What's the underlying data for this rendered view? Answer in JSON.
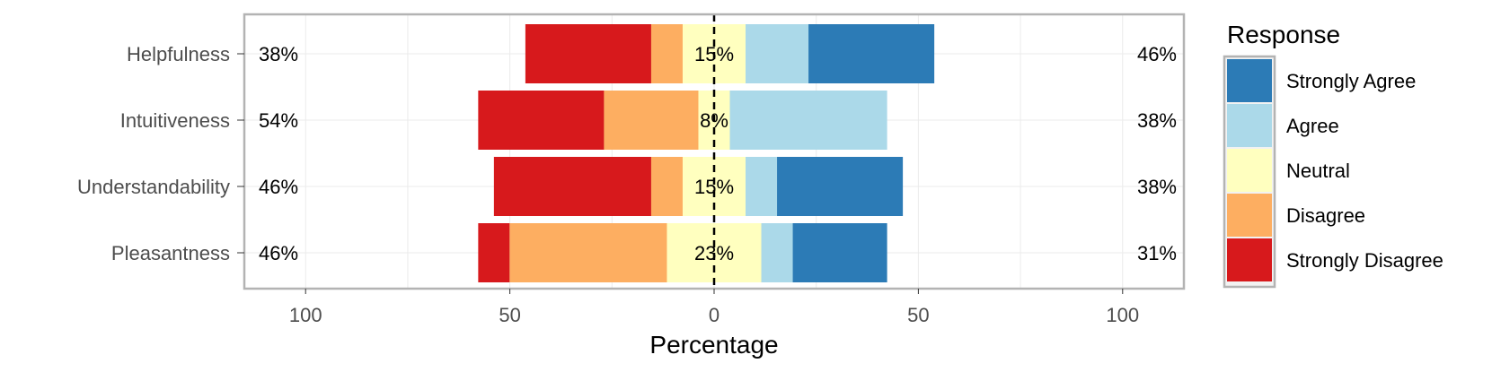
{
  "chart_data": {
    "type": "bar",
    "orientation": "horizontal-diverging",
    "xlabel": "Percentage",
    "xlim": [
      -115,
      115
    ],
    "x_ticks": [
      -100,
      -50,
      0,
      50,
      100
    ],
    "x_tick_labels": [
      "100",
      "50",
      "0",
      "50",
      "100"
    ],
    "grid": true,
    "legend_placement": "right",
    "legend_title": "Response",
    "categories": [
      "Helpfulness",
      "Intuitiveness",
      "Understandability",
      "Pleasantness"
    ],
    "series": [
      {
        "name": "Strongly Disagree",
        "color": "#d7191c",
        "values": [
          30.8,
          30.8,
          38.5,
          7.7
        ]
      },
      {
        "name": "Disagree",
        "color": "#fdae61",
        "values": [
          7.7,
          23.1,
          7.7,
          38.5
        ]
      },
      {
        "name": "Neutral",
        "color": "#ffffbf",
        "values": [
          15.4,
          7.7,
          15.4,
          23.1
        ]
      },
      {
        "name": "Agree",
        "color": "#abd9e9",
        "values": [
          15.4,
          38.5,
          7.7,
          7.7
        ]
      },
      {
        "name": "Strongly Agree",
        "color": "#2c7bb6",
        "values": [
          30.8,
          0,
          30.8,
          23.1
        ]
      }
    ],
    "left_labels": [
      "38%",
      "54%",
      "46%",
      "46%"
    ],
    "center_labels": [
      "15%",
      "8%",
      "15%",
      "23%"
    ],
    "right_labels": [
      "46%",
      "38%",
      "38%",
      "31%"
    ],
    "legend_order": [
      "Strongly Agree",
      "Agree",
      "Neutral",
      "Disagree",
      "Strongly Disagree"
    ]
  }
}
